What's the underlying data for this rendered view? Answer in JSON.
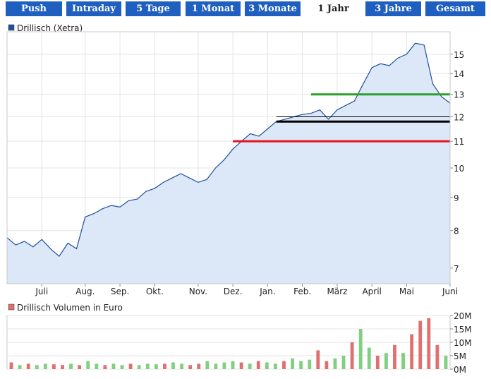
{
  "tabs": [
    "Push",
    "Intraday",
    "5 Tage",
    "1 Monat",
    "3 Monate",
    "1 Jahr",
    "3 Jahre",
    "Gesamt"
  ],
  "active_tab": 5,
  "chart_data": [
    {
      "type": "area",
      "log": true,
      "grid": true,
      "categories": [
        null,
        null,
        null,
        null,
        "Juli",
        null,
        null,
        null,
        null,
        "Aug.",
        null,
        null,
        null,
        "Sep.",
        null,
        null,
        null,
        "Okt.",
        null,
        null,
        null,
        null,
        "Nov.",
        null,
        null,
        null,
        "Dez.",
        null,
        null,
        null,
        "Jan.",
        null,
        null,
        null,
        "Feb.",
        null,
        null,
        null,
        "März",
        null,
        null,
        null,
        "April",
        null,
        null,
        null,
        "Mai",
        null,
        null,
        null,
        null,
        "Juni"
      ],
      "series": [
        {
          "name": "Drillisch (Xetra)",
          "color": "#1f4f9f",
          "values": [
            7.8,
            7.6,
            7.7,
            7.55,
            7.75,
            7.5,
            7.3,
            7.65,
            7.5,
            8.4,
            8.5,
            8.65,
            8.75,
            8.7,
            8.9,
            8.95,
            9.2,
            9.3,
            9.5,
            9.65,
            9.8,
            9.65,
            9.5,
            9.6,
            10.0,
            10.3,
            10.7,
            11.0,
            11.3,
            11.2,
            11.5,
            11.8,
            11.9,
            12.0,
            12.1,
            12.15,
            12.3,
            11.9,
            12.3,
            12.5,
            12.7,
            13.5,
            14.3,
            14.5,
            14.4,
            14.8,
            15.0,
            15.6,
            15.5,
            13.5,
            12.9,
            12.6
          ]
        }
      ],
      "ylim": [
        6.62,
        16.25
      ],
      "yticks": [
        7,
        8,
        9,
        10,
        11,
        12,
        13,
        14,
        15
      ],
      "reference_lines": [
        {
          "value": 13,
          "color": "#2ca02c",
          "start": 35
        },
        {
          "value": 12,
          "color": "#000000",
          "start": 31
        },
        {
          "value": 11.8,
          "color": "#000000",
          "start": 31
        },
        {
          "value": 11,
          "color": "#e8141c",
          "start": 26
        }
      ]
    },
    {
      "type": "bar",
      "series": [
        {
          "name": "Drillisch Volumen in Euro",
          "color": "#e07070",
          "values": [
            2.5,
            1.5,
            2,
            1.5,
            2,
            1.8,
            1.5,
            2,
            1.5,
            3,
            2,
            1.5,
            2,
            1.5,
            2,
            1.5,
            2,
            1.8,
            2,
            2.5,
            2,
            1.5,
            2,
            3,
            2,
            2.5,
            3,
            2.5,
            2,
            3,
            2.5,
            2,
            3,
            4,
            3,
            3.5,
            7,
            3,
            4,
            5,
            10,
            15,
            8,
            5,
            6,
            9,
            6,
            13,
            18,
            19,
            9,
            5
          ],
          "bar_colors": [
            "#e07070",
            "#80d080",
            "#e07070",
            "#80d080",
            "#80d080",
            "#e07070",
            "#e07070",
            "#80d080",
            "#e07070",
            "#80d080",
            "#80d080",
            "#e07070",
            "#80d080",
            "#80d080",
            "#e07070",
            "#80d080",
            "#80d080",
            "#80d080",
            "#e07070",
            "#80d080",
            "#80d080",
            "#e07070",
            "#e07070",
            "#80d080",
            "#80d080",
            "#80d080",
            "#80d080",
            "#e07070",
            "#80d080",
            "#e07070",
            "#80d080",
            "#80d080",
            "#e07070",
            "#80d080",
            "#80d080",
            "#80d080",
            "#e07070",
            "#e07070",
            "#80d080",
            "#80d080",
            "#e07070",
            "#80d080",
            "#80d080",
            "#e07070",
            "#80d080",
            "#e07070",
            "#80d080",
            "#e07070",
            "#e07070",
            "#e07070",
            "#e07070",
            "#80d080"
          ]
        }
      ],
      "ylim": [
        0,
        20
      ],
      "yticks": [
        {
          "value": 0,
          "label": "0M"
        },
        {
          "value": 5,
          "label": "5M"
        },
        {
          "value": 10,
          "label": "10M"
        },
        {
          "value": 15,
          "label": "15M"
        },
        {
          "value": 20,
          "label": "20M"
        }
      ]
    }
  ]
}
